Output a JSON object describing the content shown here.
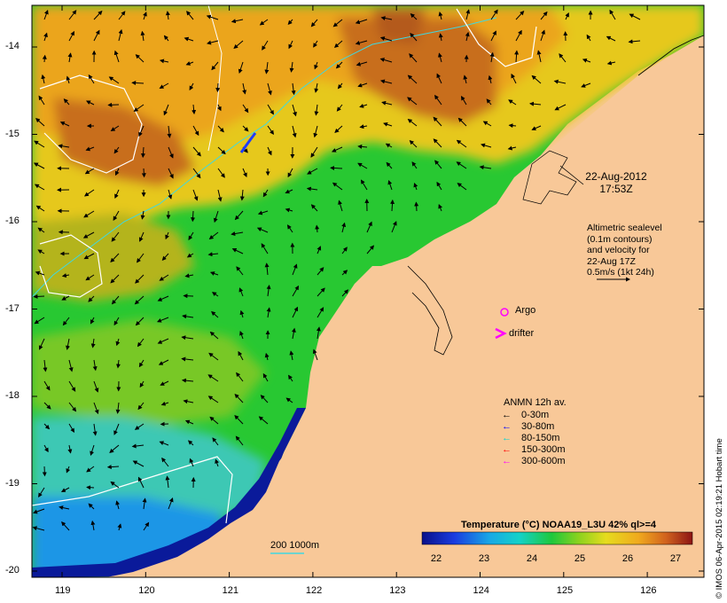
{
  "map": {
    "date": "22-Aug-2012",
    "time": "17:53Z",
    "altimetry": [
      "Altimetric sealevel",
      "(0.1m contours)",
      "and velocity for",
      "22-Aug 17Z",
      "0.5m/s (1kt 24h)"
    ],
    "argo_label": "Argo",
    "drifter_label": "drifter",
    "depth_scale_label": "200  1000m",
    "credit": "© IMOS 06-Apr-2015 02:19:21 Hobart time",
    "lon_ticks": [
      "119",
      "120",
      "121",
      "122",
      "123",
      "124",
      "125",
      "126"
    ],
    "lat_ticks": [
      "-14",
      "-15",
      "-16",
      "-17",
      "-18",
      "-19",
      "-20"
    ]
  },
  "legend": {
    "title": "ANMN 12h av.",
    "items": [
      {
        "label": "0-30m",
        "color": "#000000"
      },
      {
        "label": "30-80m",
        "color": "#0000ff"
      },
      {
        "label": "80-150m",
        "color": "#00d4d4"
      },
      {
        "label": "150-300m",
        "color": "#ff0000"
      },
      {
        "label": "300-600m",
        "color": "#ff00ff"
      }
    ]
  },
  "colorbar": {
    "title": "Temperature (°C) NOAA19_L3U 42% ql>=4",
    "ticks": [
      "22",
      "23",
      "24",
      "25",
      "26",
      "27"
    ]
  },
  "colors": {
    "land": "#f8c898",
    "deep_blue": "#0a1a9a",
    "blue": "#1e78e6",
    "cyan": "#14c8dc",
    "green": "#28c832",
    "lime": "#8cd21e",
    "yellow": "#e6dc1e",
    "orange": "#eba51e",
    "brown": "#c86e1e"
  }
}
